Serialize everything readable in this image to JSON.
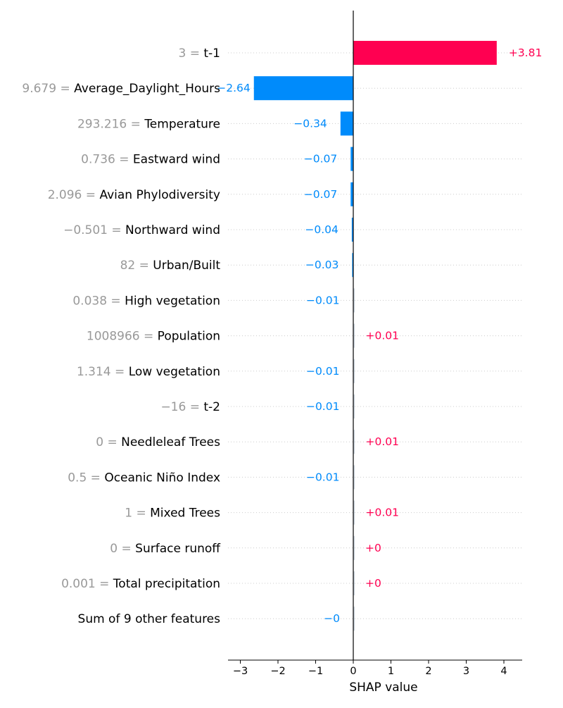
{
  "chart_data": {
    "type": "bar",
    "xlabel": "SHAP value",
    "xlim": [
      -3.3,
      4.5
    ],
    "xticks": [
      -3,
      -2,
      -1,
      0,
      1,
      2,
      3,
      4
    ],
    "xtick_labels": [
      "−3",
      "−2",
      "−1",
      "0",
      "1",
      "2",
      "3",
      "4"
    ],
    "grid": "horizontal dotted",
    "colors": {
      "positive": "#ff0051",
      "negative": "#008bfb",
      "feature_value": "#999999",
      "axis": "#000000"
    },
    "features": [
      {
        "feature_value": "3",
        "name": "t-1",
        "shap": 3.81,
        "label": "+3.81"
      },
      {
        "feature_value": "9.679",
        "name": "Average_Daylight_Hours",
        "shap": -2.64,
        "label": "−2.64"
      },
      {
        "feature_value": "293.216",
        "name": "Temperature",
        "shap": -0.34,
        "label": "−0.34"
      },
      {
        "feature_value": "0.736",
        "name": "Eastward wind",
        "shap": -0.07,
        "label": "−0.07"
      },
      {
        "feature_value": "2.096",
        "name": "Avian Phylodiversity",
        "shap": -0.07,
        "label": "−0.07"
      },
      {
        "feature_value": "−0.501",
        "name": "Northward wind",
        "shap": -0.04,
        "label": "−0.04"
      },
      {
        "feature_value": "82",
        "name": "Urban/Built",
        "shap": -0.03,
        "label": "−0.03"
      },
      {
        "feature_value": "0.038",
        "name": "High vegetation",
        "shap": -0.01,
        "label": "−0.01"
      },
      {
        "feature_value": "1008966",
        "name": "Population",
        "shap": 0.01,
        "label": "+0.01"
      },
      {
        "feature_value": "1.314",
        "name": "Low vegetation",
        "shap": -0.01,
        "label": "−0.01"
      },
      {
        "feature_value": "−16",
        "name": "t-2",
        "shap": -0.01,
        "label": "−0.01"
      },
      {
        "feature_value": "0",
        "name": "Needleleaf Trees",
        "shap": 0.01,
        "label": "+0.01"
      },
      {
        "feature_value": "0.5",
        "name": "Oceanic Niño Index",
        "shap": -0.01,
        "label": "−0.01"
      },
      {
        "feature_value": "1",
        "name": "Mixed Trees",
        "shap": 0.01,
        "label": "+0.01"
      },
      {
        "feature_value": "0",
        "name": "Surface runoff",
        "shap": 0.0,
        "label": "+0"
      },
      {
        "feature_value": "0.001",
        "name": "Total precipitation",
        "shap": 0.0,
        "label": "+0"
      },
      {
        "feature_value": "",
        "name": "Sum of 9 other features",
        "shap": 0.0,
        "label": "−0"
      }
    ]
  }
}
